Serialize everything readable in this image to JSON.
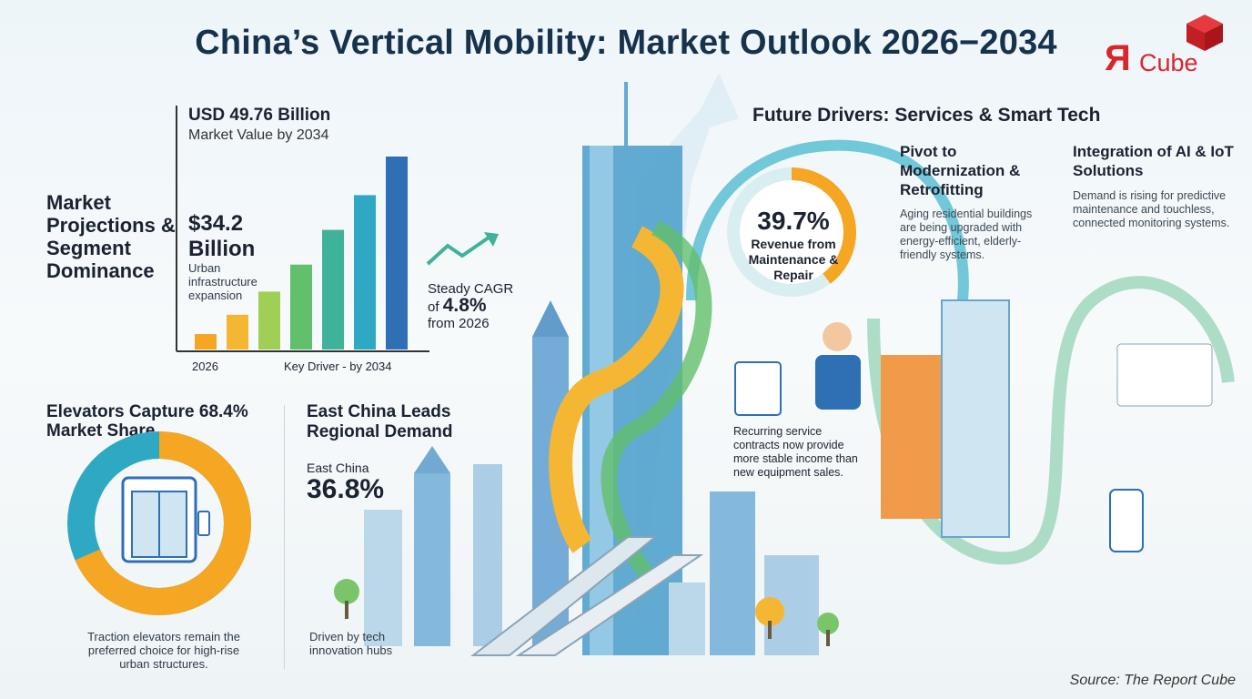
{
  "title": "China’s Vertical Mobility: Market Outlook 2026−2034",
  "logo": {
    "letter": "Я",
    "text": "Cube",
    "color": "#d8262b"
  },
  "colors": {
    "teal": "#2fa8c4",
    "green": "#62bf6c",
    "orange": "#f5a623",
    "blue": "#2f6fb4",
    "navy": "#17324d"
  },
  "market": {
    "heading": "Market Projections & Segment Dominance",
    "value_2034": "USD 49.76 Billion",
    "value_2034_label": "Market Value by 2034",
    "mid_value": "$34.2 Billion",
    "mid_caption": "Urban infrastructure expansion",
    "axis_start": "2026",
    "axis_end": "Key Driver - by 2034",
    "cagr_prefix": "Steady CAGR",
    "cagr_of": "of",
    "cagr_value": "4.8%",
    "cagr_suffix": "from 2026"
  },
  "chart_data": {
    "type": "bar",
    "bars": [
      4,
      9,
      15,
      22,
      31,
      40,
      50
    ],
    "colors": [
      "#f5a623",
      "#f5b733",
      "#9fcf55",
      "#62bf6c",
      "#3fb39a",
      "#2fa8c4",
      "#2f6fb4"
    ],
    "labels": [
      "2026",
      "Key Driver - by 2034"
    ]
  },
  "elevators": {
    "heading": "Elevators Capture 68.4% Market Share",
    "share": 68.4,
    "caption": "Traction elevators remain the preferred choice for high-rise urban structures."
  },
  "east": {
    "heading": "East China Leads Regional Demand",
    "label": "East China",
    "value": "36.8%",
    "caption": "Driven by tech innovation hubs"
  },
  "future": {
    "heading": "Future Drivers: Services & Smart Tech",
    "revenue_pct": "39.7%",
    "revenue_share": 39.7,
    "revenue_label": "Revenue from Maintenance & Repair",
    "service_caption": "Recurring service contracts now provide more stable income than new equipment sales.",
    "modernization_heading": "Pivot to Modernization & Retrofitting",
    "modernization_text": "Aging residential buildings are being upgraded with energy-efficient, elderly-friendly systems.",
    "ai_heading": "Integration of AI & IoT Solutions",
    "ai_text": "Demand is rising for predictive maintenance and touchless, connected monitoring systems."
  },
  "source": "Source: The Report Cube"
}
